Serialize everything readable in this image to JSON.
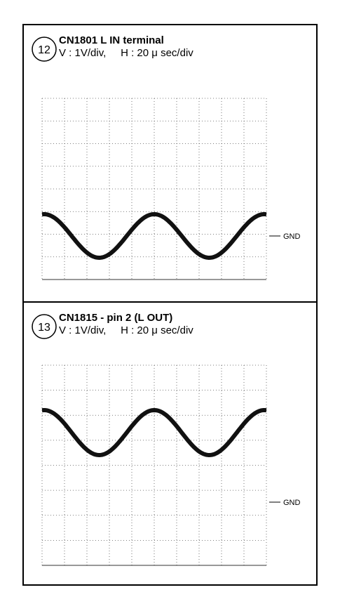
{
  "panels": [
    {
      "number": "12",
      "title": "CN1801 L IN terminal",
      "settings": "V : 1V/div,     H : 20 μ sec/div",
      "gnd_label": "GND"
    },
    {
      "number": "13",
      "title": "CN1815 - pin 2 (L OUT)",
      "settings": "V : 1V/div,     H : 20 μ sec/div",
      "gnd_label": "GND"
    }
  ]
}
